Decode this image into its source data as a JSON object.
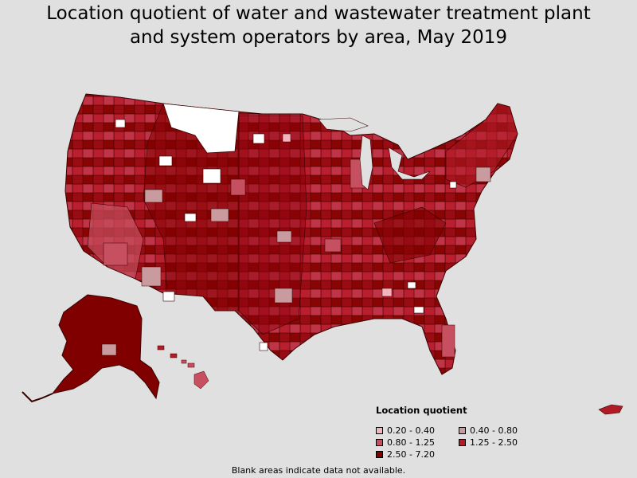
{
  "title": {
    "line1": "Location quotient of water and wastewater treatment plant",
    "line2": "and system operators by area, May 2019"
  },
  "legend": {
    "title": "Location quotient",
    "items": [
      {
        "label": "0.20 - 0.40",
        "color": "#f4b4bd"
      },
      {
        "label": "0.40 - 0.80",
        "color": "#c99a9e"
      },
      {
        "label": "0.80 - 1.25",
        "color": "#c65060"
      },
      {
        "label": "1.25 - 2.50",
        "color": "#b01c26"
      },
      {
        "label": "2.50 - 7.20",
        "color": "#800000"
      }
    ]
  },
  "note": "Blank areas indicate data not available.",
  "colors": {
    "background": "#e0e0e0",
    "no_data": "#ffffff",
    "border": "#3a0000"
  }
}
